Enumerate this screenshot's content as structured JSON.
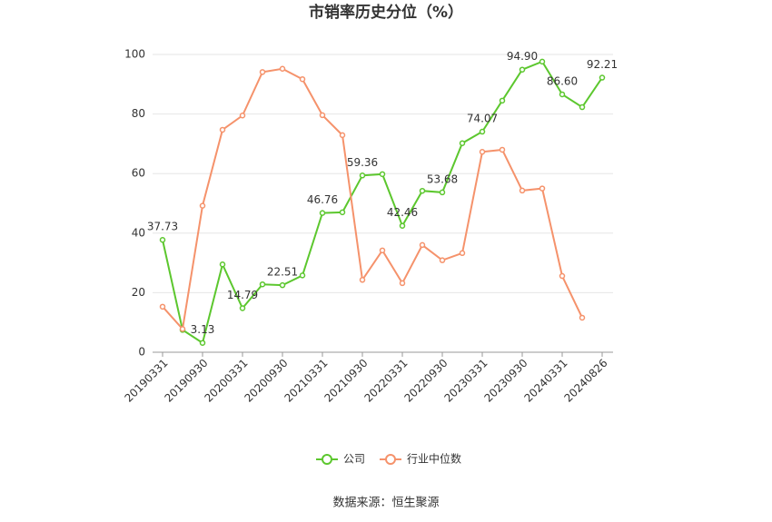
{
  "chart_data": {
    "type": "line",
    "title": "市销率历史分位（%）",
    "categories": [
      "20190331",
      null,
      "20190930",
      null,
      "20200331",
      null,
      "20200930",
      null,
      "20210331",
      null,
      "20210930",
      null,
      "20220331",
      null,
      "20220930",
      null,
      "20230331",
      null,
      "20230930",
      null,
      "20240331",
      null,
      "20240826"
    ],
    "series": [
      {
        "name": "公司",
        "color": "#5cc72e",
        "values": [
          37.73,
          7.5,
          3.13,
          29.5,
          14.79,
          22.8,
          22.51,
          25.8,
          46.76,
          47,
          59.36,
          59.8,
          42.46,
          54.2,
          53.68,
          70.2,
          74.07,
          84.5,
          94.9,
          97.6,
          86.6,
          82.3,
          92.21
        ],
        "value_labels": [
          "37.73",
          null,
          "3.13",
          null,
          "14.79",
          null,
          "22.51",
          null,
          "46.76",
          null,
          "59.36",
          null,
          "42.46",
          null,
          "53.68",
          null,
          "74.07",
          null,
          "94.90",
          null,
          "86.60",
          null,
          "92.21"
        ]
      },
      {
        "name": "行业中位数",
        "color": "#f5926b",
        "values": [
          15.3,
          7.8,
          49.2,
          74.7,
          79.5,
          94.1,
          95.2,
          91.7,
          79.6,
          72.9,
          24.3,
          34.2,
          23.2,
          36,
          30.9,
          33.3,
          67.3,
          68,
          54.3,
          55,
          25.6,
          11.6,
          null
        ]
      }
    ],
    "ylim": [
      0,
      100
    ],
    "yticks": [
      0,
      20,
      40,
      60,
      80,
      100
    ],
    "grid": true,
    "source": "数据来源：恒生聚源"
  }
}
